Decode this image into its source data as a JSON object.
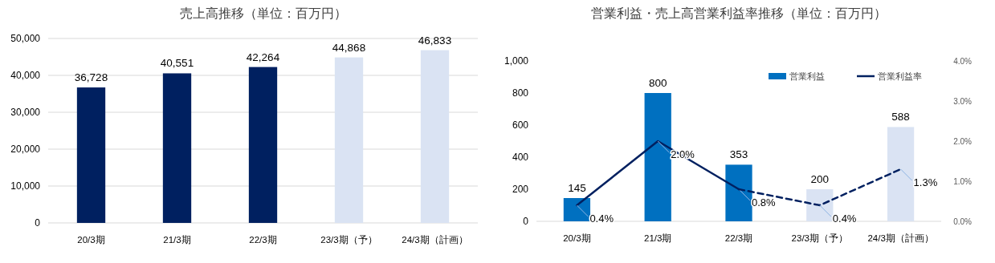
{
  "chart_data": [
    {
      "type": "bar",
      "title": "売上高推移（単位：百万円）",
      "categories": [
        "20/3期",
        "21/3期",
        "22/3期",
        "23/3期（予）",
        "24/3期（計画）"
      ],
      "series": [
        {
          "values": [
            36728,
            40551,
            42264,
            44868,
            46833
          ],
          "colors": [
            "#002060",
            "#002060",
            "#002060",
            "#dae3f3",
            "#dae3f3"
          ],
          "value_labels": [
            "36,728",
            "40,551",
            "42,264",
            "44,868",
            "46,833"
          ]
        }
      ],
      "ylim": [
        0,
        50000
      ],
      "yticks": [
        0,
        {
          "value": 10000,
          "label": "10,000"
        },
        {
          "value": 20000,
          "label": "20,000"
        },
        {
          "value": 30000,
          "label": "30,000"
        },
        {
          "value": 40000,
          "label": "40,000"
        },
        {
          "value": 50000,
          "label": "50,000"
        }
      ],
      "grid": "y",
      "legend": false
    },
    {
      "type": "bar",
      "title": "営業利益・売上高営業利益率推移（単位：百万円）",
      "categories": [
        "20/3期",
        "21/3期",
        "22/3期",
        "23/3期（予）",
        "24/3期（計画）"
      ],
      "series": [
        {
          "name": "営業利益",
          "color": "#0070c0",
          "values": [
            145,
            800,
            353,
            200,
            588
          ],
          "colors": [
            "#0070c0",
            "#0070c0",
            "#0070c0",
            "#dae3f3",
            "#dae3f3"
          ],
          "value_labels": [
            "145",
            "800",
            "353",
            "200",
            "588"
          ]
        },
        {
          "type": "line",
          "name": "営業利益率",
          "axis": "y2",
          "color": "#002060",
          "line_style": "solid",
          "values": [
            0.4,
            2.0,
            0.8,
            null,
            null
          ],
          "value_labels": [
            "0.4%",
            "2.0%",
            "0.8%",
            null,
            null
          ]
        },
        {
          "type": "line",
          "axis": "y2",
          "color": "#002060",
          "line_style": "dashed",
          "values": [
            null,
            null,
            0.8,
            0.4,
            1.3
          ],
          "value_labels": [
            null,
            null,
            null,
            "0.4%",
            "1.3%"
          ]
        }
      ],
      "ylim": [
        0,
        1000
      ],
      "yticks": [
        0,
        200,
        400,
        600,
        800,
        {
          "value": 1000,
          "label": "1,000"
        }
      ],
      "y2lim": [
        0,
        4
      ],
      "y2ticks": [
        {
          "value": 0,
          "label": "0.0%"
        },
        {
          "value": 1,
          "label": "1.0%"
        },
        {
          "value": 2,
          "label": "2.0%"
        },
        {
          "value": 3,
          "label": "3.0%"
        },
        {
          "value": 4,
          "label": "4.0%"
        }
      ],
      "legend": "top right"
    }
  ]
}
